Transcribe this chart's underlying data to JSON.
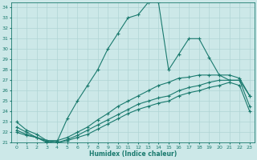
{
  "xlabel": "Humidex (Indice chaleur)",
  "bg_color": "#cce8e8",
  "grid_color": "#b0d4d4",
  "line_color": "#1a7a6e",
  "xlim": [
    -0.5,
    23.5
  ],
  "ylim": [
    21,
    34.5
  ],
  "yticks": [
    21,
    22,
    23,
    24,
    25,
    26,
    27,
    28,
    29,
    30,
    31,
    32,
    33,
    34
  ],
  "xticks": [
    0,
    1,
    2,
    3,
    4,
    5,
    6,
    7,
    8,
    9,
    10,
    11,
    12,
    13,
    14,
    15,
    16,
    17,
    18,
    19,
    20,
    21,
    22,
    23
  ],
  "curves": [
    {
      "x": [
        0,
        1,
        2,
        3,
        4,
        5,
        6,
        7,
        8,
        9,
        10,
        11,
        12,
        13,
        14,
        15,
        16,
        17,
        18,
        19,
        20,
        21,
        22,
        23
      ],
      "y": [
        23.0,
        22.2,
        21.8,
        21.2,
        21.1,
        23.3,
        25.0,
        26.5,
        28.0,
        30.0,
        31.5,
        33.0,
        33.3,
        34.5,
        34.5,
        28.0,
        29.5,
        31.0,
        31.0,
        29.2,
        27.5,
        27.0,
        27.0,
        25.5
      ]
    },
    {
      "x": [
        0,
        1,
        2,
        3,
        4,
        5,
        6,
        7,
        8,
        9,
        10,
        11,
        12,
        13,
        14,
        15,
        16,
        17,
        18,
        19,
        20,
        21,
        22,
        23
      ],
      "y": [
        22.5,
        22.0,
        21.5,
        21.2,
        21.2,
        21.5,
        22.0,
        22.5,
        23.2,
        23.8,
        24.5,
        25.0,
        25.5,
        26.0,
        26.5,
        26.8,
        27.2,
        27.3,
        27.5,
        27.5,
        27.5,
        27.5,
        27.2,
        25.5
      ]
    },
    {
      "x": [
        0,
        1,
        2,
        3,
        4,
        5,
        6,
        7,
        8,
        9,
        10,
        11,
        12,
        13,
        14,
        15,
        16,
        17,
        18,
        19,
        20,
        21,
        22,
        23
      ],
      "y": [
        22.2,
        21.8,
        21.5,
        21.1,
        21.0,
        21.3,
        21.7,
        22.2,
        22.7,
        23.2,
        23.7,
        24.2,
        24.7,
        25.0,
        25.3,
        25.5,
        26.0,
        26.3,
        26.5,
        26.8,
        27.0,
        27.0,
        27.0,
        24.5
      ]
    },
    {
      "x": [
        0,
        1,
        2,
        3,
        4,
        5,
        6,
        7,
        8,
        9,
        10,
        11,
        12,
        13,
        14,
        15,
        16,
        17,
        18,
        19,
        20,
        21,
        22,
        23
      ],
      "y": [
        22.0,
        21.7,
        21.5,
        21.0,
        21.0,
        21.2,
        21.5,
        21.8,
        22.3,
        22.8,
        23.3,
        23.8,
        24.2,
        24.5,
        24.8,
        25.0,
        25.5,
        25.8,
        26.0,
        26.3,
        26.5,
        26.8,
        26.5,
        24.0
      ]
    }
  ]
}
